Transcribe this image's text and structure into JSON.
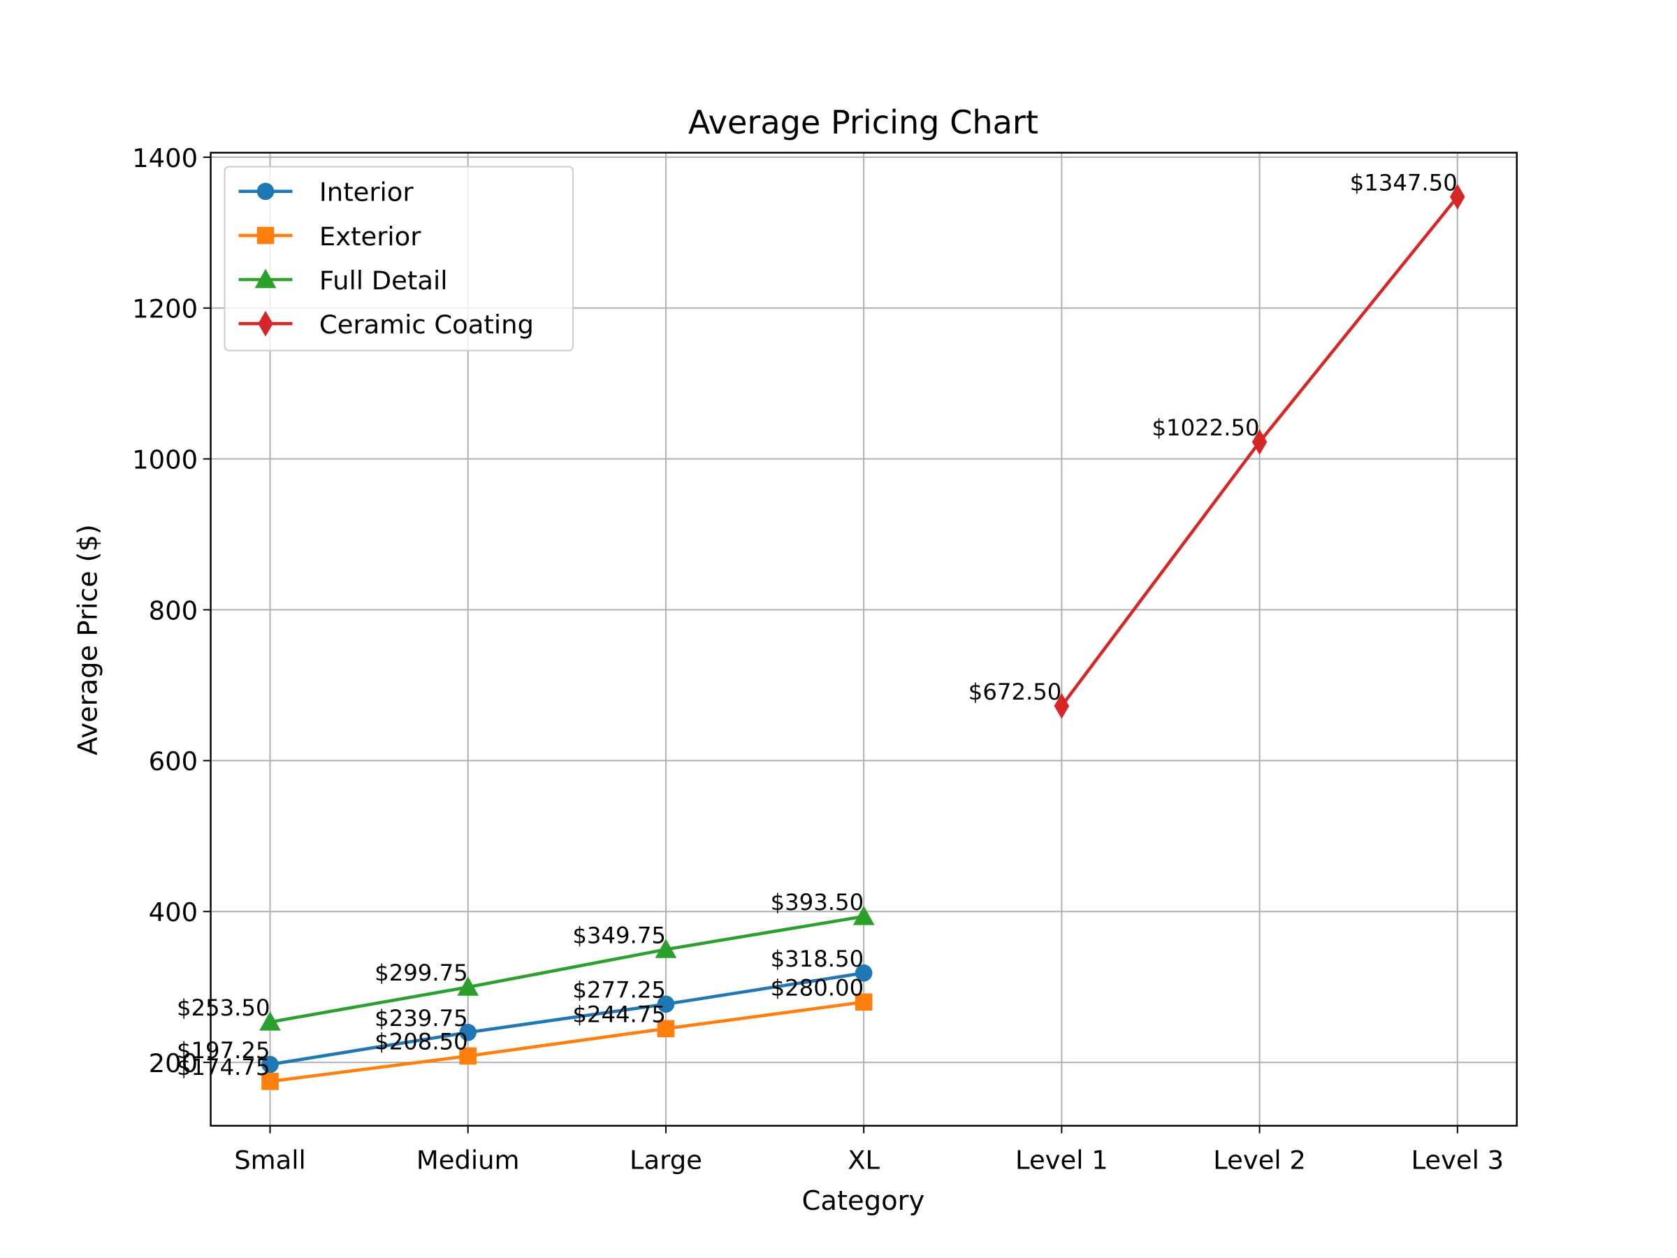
{
  "chart_data": {
    "type": "line",
    "title": "Average Pricing Chart",
    "x_label": "Category",
    "y_label": "Average Price ($)",
    "categories": [
      "Small",
      "Medium",
      "Large",
      "XL",
      "Level 1",
      "Level 2",
      "Level 3"
    ],
    "series": [
      {
        "name": "Interior",
        "color": "#1f77b4",
        "marker": "circle",
        "values": [
          197.25,
          239.75,
          277.25,
          318.5,
          null,
          null,
          null
        ],
        "value_labels": [
          "$197.25",
          "$239.75",
          "$277.25",
          "$318.50",
          null,
          null,
          null
        ]
      },
      {
        "name": "Exterior",
        "color": "#ff7f0e",
        "marker": "square",
        "values": [
          174.75,
          208.5,
          244.75,
          280,
          null,
          null,
          null
        ],
        "value_labels": [
          "$174.75",
          "$208.50",
          "$244.75",
          "$280.00",
          null,
          null,
          null
        ]
      },
      {
        "name": "Full Detail",
        "color": "#2ca02c",
        "marker": "triangle",
        "values": [
          253.5,
          299.75,
          349.75,
          393.5,
          null,
          null,
          null
        ],
        "value_labels": [
          "$253.50",
          "$299.75",
          "$349.75",
          "$393.50",
          null,
          null,
          null
        ]
      },
      {
        "name": "Ceramic Coating",
        "color": "#d62728",
        "marker": "diamond",
        "values": [
          null,
          null,
          null,
          null,
          672.5,
          1022.5,
          1347.5
        ],
        "value_labels": [
          null,
          null,
          null,
          null,
          "$672.50",
          "$1022.50",
          "$1347.50"
        ]
      }
    ],
    "ylim": [
      116,
      1406
    ],
    "yticks": [
      200,
      400,
      600,
      800,
      1000,
      1200,
      1400
    ],
    "grid": true,
    "legend": "upper left"
  }
}
